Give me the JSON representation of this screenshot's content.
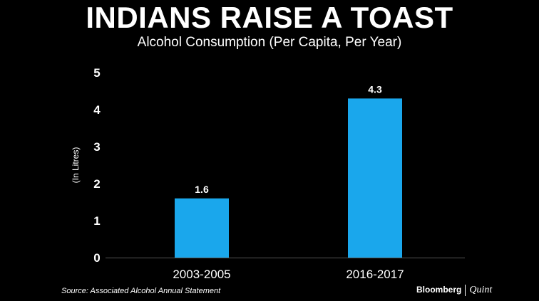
{
  "header": {
    "title": "INDIANS RAISE A TOAST",
    "subtitle": "Alcohol Consumption (Per Capita, Per Year)"
  },
  "footer": {
    "source": "Source: Associated Alcohol Annual Statement",
    "brand_primary": "Bloomberg",
    "brand_secondary": "Quint"
  },
  "colors": {
    "background": "#000000",
    "bar": "#1aa7ec",
    "text": "#ffffff",
    "axis": "#555555"
  },
  "chart_data": {
    "type": "bar",
    "title": "INDIANS RAISE A TOAST",
    "subtitle": "Alcohol Consumption (Per Capita, Per Year)",
    "categories": [
      "2003-2005",
      "2016-2017"
    ],
    "values": [
      1.6,
      4.3
    ],
    "value_labels": [
      "1.6",
      "4.3"
    ],
    "xlabel": "",
    "ylabel": "(In Litres)",
    "ylim": [
      0,
      5
    ],
    "yticks": [
      "0",
      "1",
      "2",
      "3",
      "4",
      "5"
    ],
    "grid": false,
    "legend": "none"
  }
}
